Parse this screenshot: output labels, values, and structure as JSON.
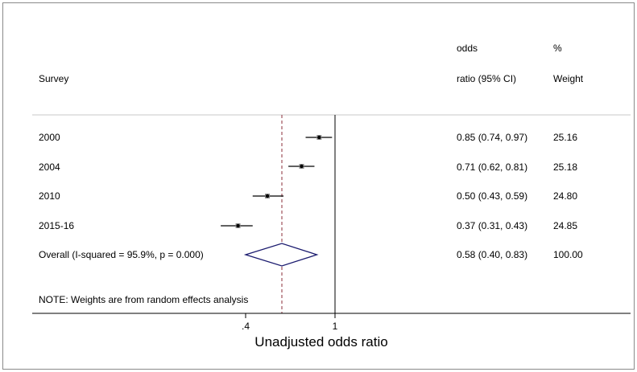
{
  "chart_data": {
    "type": "forest",
    "headers": {
      "study": "Survey",
      "or_line1": "odds",
      "or_line2": "ratio (95% CI)",
      "weight_line1": "%",
      "weight_line2": "Weight"
    },
    "studies": [
      {
        "label": "2000",
        "or": 0.85,
        "lower": 0.74,
        "upper": 0.97,
        "ci_text": "0.85 (0.74, 0.97)",
        "weight": "25.16"
      },
      {
        "label": "2004",
        "or": 0.71,
        "lower": 0.62,
        "upper": 0.81,
        "ci_text": "0.71 (0.62, 0.81)",
        "weight": "25.18"
      },
      {
        "label": "2010",
        "or": 0.5,
        "lower": 0.43,
        "upper": 0.59,
        "ci_text": "0.50 (0.43, 0.59)",
        "weight": "24.80"
      },
      {
        "label": "2015-16",
        "or": 0.37,
        "lower": 0.31,
        "upper": 0.43,
        "ci_text": "0.37 (0.31, 0.43)",
        "weight": "24.85"
      }
    ],
    "overall": {
      "label": "Overall  (I-squared = 95.9%, p = 0.000)",
      "or": 0.58,
      "lower": 0.4,
      "upper": 0.83,
      "ci_text": "0.58 (0.40, 0.83)",
      "weight": "100.00"
    },
    "note": "NOTE: Weights are from random effects analysis",
    "x_axis": {
      "scale": "log",
      "ticks": [
        {
          "value": 0.4,
          "label": ".4"
        },
        {
          "value": 1,
          "label": "1"
        }
      ],
      "title": "Unadjusted odds ratio"
    },
    "null_line": 1,
    "colors": {
      "diamond": "#1a1a6e",
      "overall_line": "#8b2f3a",
      "ci_line": "#000000",
      "separator": "#c8c8c8"
    }
  }
}
